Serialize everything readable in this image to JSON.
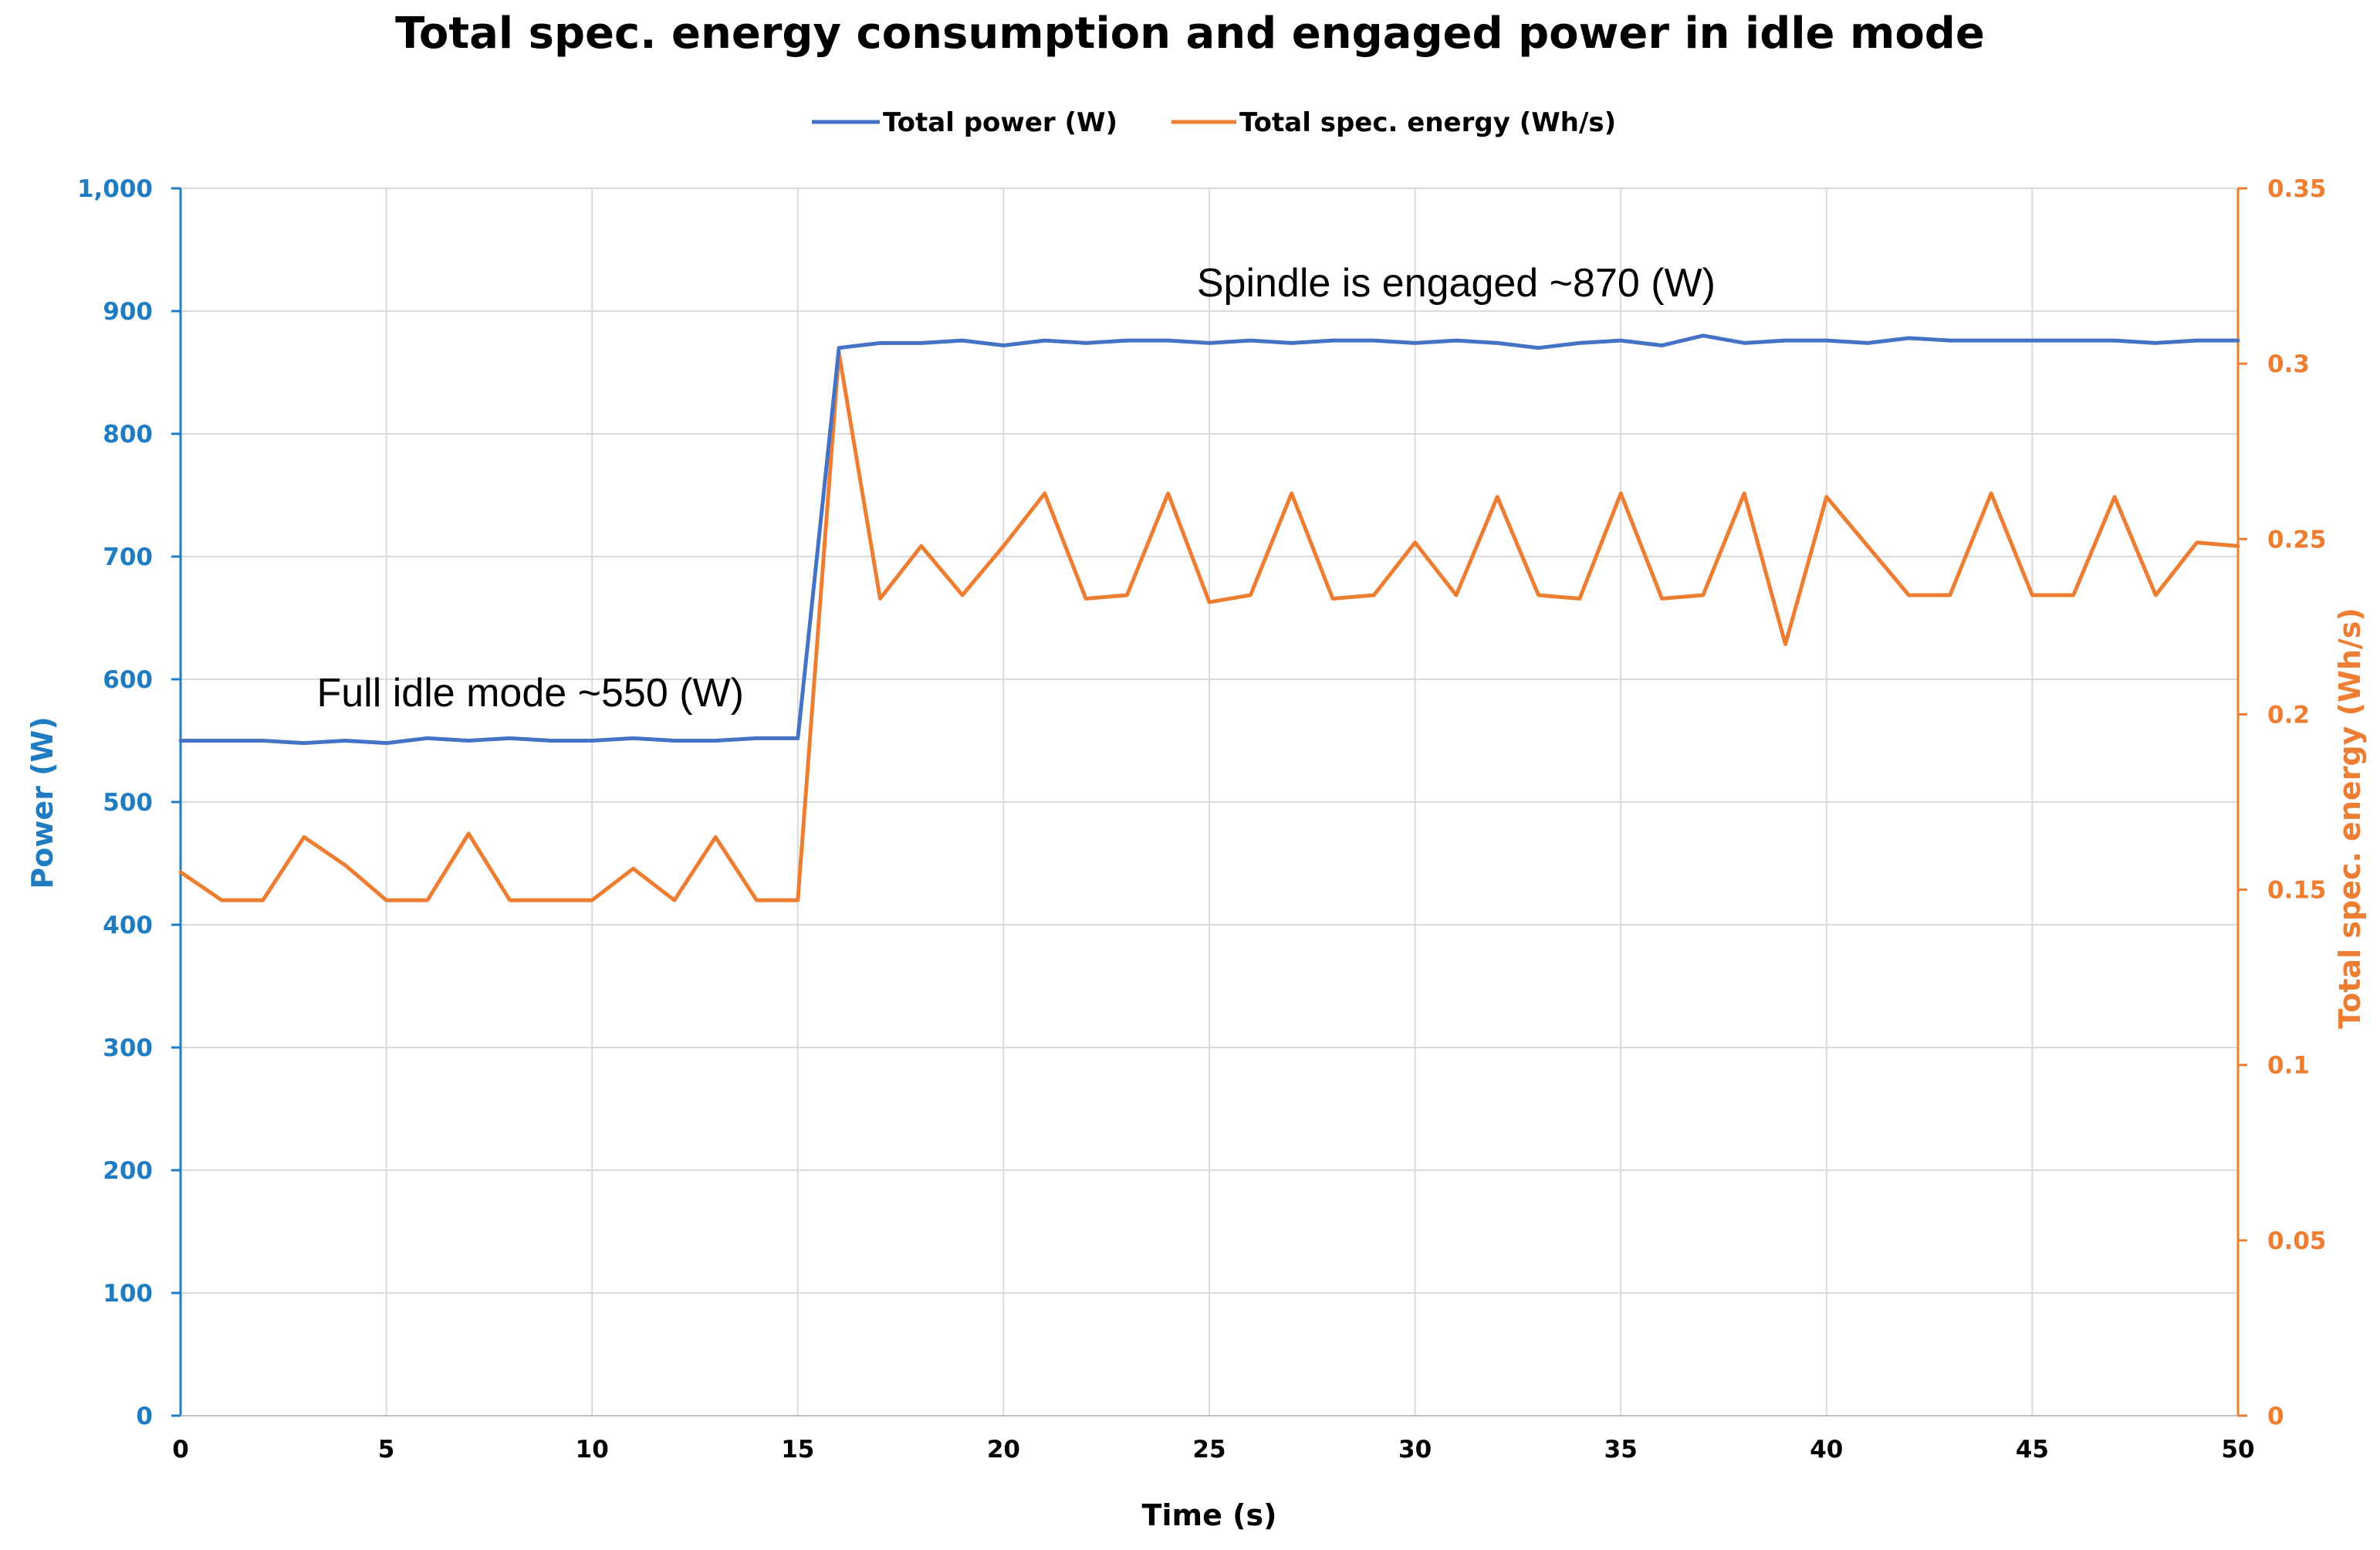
{
  "chart_data": {
    "type": "line",
    "title": "Total spec. energy consumption and engaged power in idle mode",
    "xlabel": "Time (s)",
    "ylabel_left": "Power (W)",
    "ylabel_right": "Total spec. energy (Wh/s)",
    "xlim": [
      0,
      50
    ],
    "ylim_left": [
      0,
      1000
    ],
    "ylim_right": [
      0,
      0.35
    ],
    "x_ticks": [
      "0",
      "5",
      "10",
      "15",
      "20",
      "25",
      "30",
      "35",
      "40",
      "45",
      "50"
    ],
    "y_left_ticks": [
      "0",
      "100",
      "200",
      "300",
      "400",
      "500",
      "600",
      "700",
      "800",
      "900",
      "1,000"
    ],
    "y_right_ticks": [
      "0",
      "0.05",
      "0.1",
      "0.15",
      "0.2",
      "0.25",
      "0.3",
      "0.35"
    ],
    "grid": true,
    "legend_position": "top-center",
    "x": [
      0,
      1,
      2,
      3,
      4,
      5,
      6,
      7,
      8,
      9,
      10,
      11,
      12,
      13,
      14,
      15,
      16,
      17,
      18,
      19,
      20,
      21,
      22,
      23,
      24,
      25,
      26,
      27,
      28,
      29,
      30,
      31,
      32,
      33,
      34,
      35,
      36,
      37,
      38,
      39,
      40,
      41,
      42,
      43,
      44,
      45,
      46,
      47,
      48,
      49,
      50
    ],
    "series": [
      {
        "name": "Total power (W)",
        "axis": "left",
        "color": "#4472c4",
        "values": [
          550,
          550,
          550,
          548,
          550,
          548,
          552,
          550,
          552,
          550,
          550,
          552,
          550,
          550,
          552,
          552,
          870,
          874,
          874,
          876,
          872,
          876,
          874,
          876,
          876,
          874,
          876,
          874,
          876,
          876,
          874,
          876,
          874,
          870,
          874,
          876,
          872,
          880,
          874,
          876,
          876,
          874,
          878,
          876,
          876,
          876,
          876,
          876,
          874,
          876,
          876
        ]
      },
      {
        "name": "Total spec. energy (Wh/s)",
        "axis": "right",
        "color": "#ed7d31",
        "values": [
          0.155,
          0.147,
          0.147,
          0.165,
          0.157,
          0.147,
          0.147,
          0.166,
          0.147,
          0.147,
          0.147,
          0.156,
          0.147,
          0.165,
          0.147,
          0.147,
          0.303,
          0.233,
          0.248,
          0.234,
          0.248,
          0.263,
          0.233,
          0.234,
          0.263,
          0.232,
          0.234,
          0.263,
          0.233,
          0.234,
          0.249,
          0.234,
          0.262,
          0.234,
          0.233,
          0.263,
          0.233,
          0.234,
          0.263,
          0.22,
          0.262,
          0.248,
          0.234,
          0.234,
          0.263,
          0.234,
          0.234,
          0.262,
          0.234,
          0.249,
          0.248
        ]
      }
    ],
    "annotations": [
      {
        "text": "Full idle mode ~550 (W)",
        "x": 8.5,
        "y_left": 578
      },
      {
        "text": "Spindle is engaged ~870 (W)",
        "x": 31,
        "y_left": 912
      }
    ]
  }
}
